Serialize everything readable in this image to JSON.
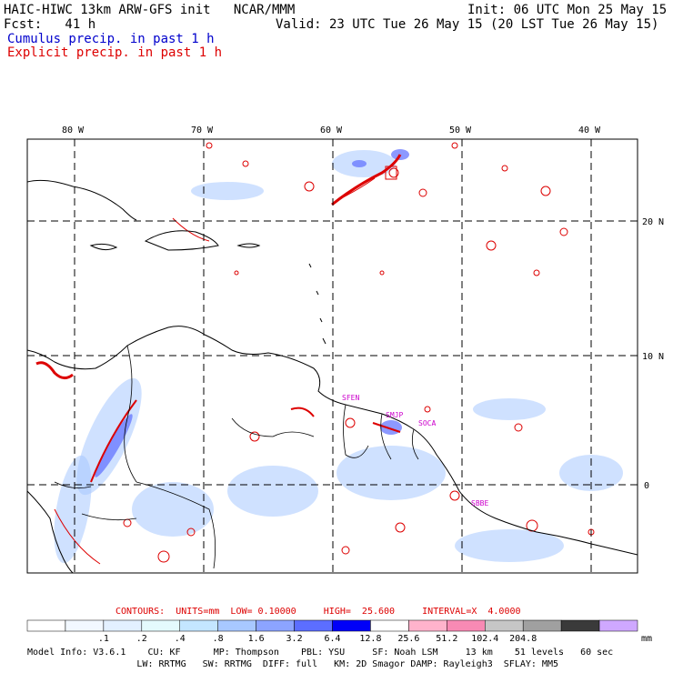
{
  "header": {
    "model_line": "HAIC-HIWC 13km ARW-GFS init   NCAR/MMM",
    "init": "Init: 06 UTC Mon 25 May 15",
    "fcst": "Fcst:   41 h",
    "valid": "Valid: 23 UTC Tue 26 May 15 (20 LST Tue 26 May 15)",
    "cumulus_label": "Cumulus precip. in past 1 h",
    "explicit_label": "Explicit precip. in past 1 h"
  },
  "map": {
    "lon_labels": [
      "80 W",
      "70 W",
      "60 W",
      "50 W",
      "40 W"
    ],
    "lat_labels": [
      "20 N",
      "10 N",
      "0"
    ],
    "station_labels": [
      "SFEN",
      "SMJP",
      "SOCA",
      "SBBE"
    ],
    "colors": {
      "coast": "#000000",
      "grid": "#000000",
      "explicit": "#dd0000",
      "cumulus": "#4466ff"
    }
  },
  "contours": {
    "text": "CONTOURS:  UNITS=mm  LOW= 0.10000     HIGH=  25.600     INTERVAL=X  4.0000"
  },
  "colorbar": {
    "colors": [
      "#ffffff",
      "#f2f8ff",
      "#e3f0ff",
      "#e4fafd",
      "#c4e6ff",
      "#a8c8ff",
      "#8ca4ff",
      "#5c6eff",
      "#0000f8",
      "#ffffff",
      "#ffb3cc",
      "#f88ab4",
      "#c6c6c6",
      "#a0a0a0",
      "#3a3a3a",
      "#cfa8ff"
    ],
    "labels": [
      ".1",
      ".2",
      ".4",
      ".8",
      "1.6",
      "3.2",
      "6.4",
      "12.8",
      "25.6",
      "51.2",
      "102.4",
      "204.8"
    ],
    "unit": "mm"
  },
  "model_info": {
    "line1": "Model Info: V3.6.1    CU: KF      MP: Thompson    PBL: YSU     SF: Noah LSM     13 km    51 levels   60 sec",
    "line2": "                    LW: RRTMG   SW: RRTMG  DIFF: full   KM: 2D Smagor DAMP: Rayleigh3  SFLAY: MM5"
  }
}
